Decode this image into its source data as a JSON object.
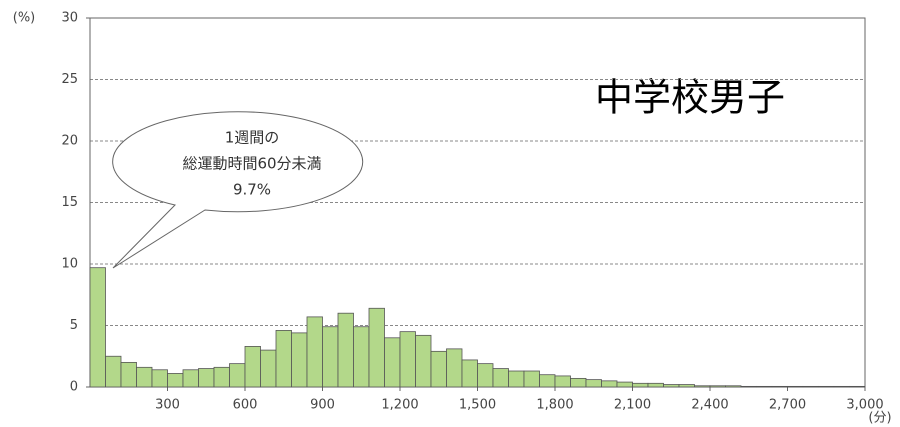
{
  "chart_data": {
    "type": "histogram",
    "title": "中学校男子",
    "y_label": "(%)",
    "x_label": "(分)",
    "annotation": [
      "1週間の",
      "総運動時間60分未満",
      "9.7%"
    ],
    "bins": [
      0,
      60,
      120,
      180,
      240,
      300,
      360,
      420,
      480,
      540,
      600,
      660,
      720,
      780,
      840,
      900,
      960,
      1020,
      1080,
      1140,
      1200,
      1260,
      1320,
      1380,
      1440,
      1500,
      1560,
      1620,
      1680,
      1740,
      1800,
      1860,
      1920,
      1980,
      2040,
      2100,
      2160,
      2220,
      2280,
      2340,
      2400,
      2460,
      2520,
      2580,
      2640,
      2700,
      2760,
      2820,
      2880,
      2940,
      3000
    ],
    "values": [
      9.7,
      2.5,
      2.0,
      1.6,
      1.4,
      1.1,
      1.4,
      1.5,
      1.6,
      1.9,
      3.3,
      3.0,
      4.6,
      4.4,
      5.7,
      4.9,
      6.0,
      4.9,
      6.4,
      4.0,
      4.5,
      4.2,
      2.9,
      3.1,
      2.2,
      1.9,
      1.5,
      1.3,
      1.3,
      1.0,
      0.9,
      0.7,
      0.6,
      0.5,
      0.4,
      0.3,
      0.3,
      0.2,
      0.2,
      0.1,
      0.1,
      0.1,
      0.05,
      0.05,
      0.05,
      0.05,
      0.05,
      0.05,
      0.05,
      0.05
    ],
    "color": "#b3d88a",
    "xlim": [
      0,
      3000
    ],
    "xticks": [
      300,
      600,
      900,
      {
        "value": 1200,
        "label": "1,200"
      },
      {
        "value": 1500,
        "label": "1,500"
      },
      {
        "value": 1800,
        "label": "1,800"
      },
      {
        "value": 2100,
        "label": "2,100"
      },
      {
        "value": 2400,
        "label": "2,400"
      },
      {
        "value": 2700,
        "label": "2,700"
      },
      {
        "value": 3000,
        "label": "3,000"
      }
    ],
    "ylim": [
      0,
      30
    ],
    "yticks": [
      0,
      5,
      10,
      15,
      20,
      25,
      30
    ],
    "grid": true
  }
}
